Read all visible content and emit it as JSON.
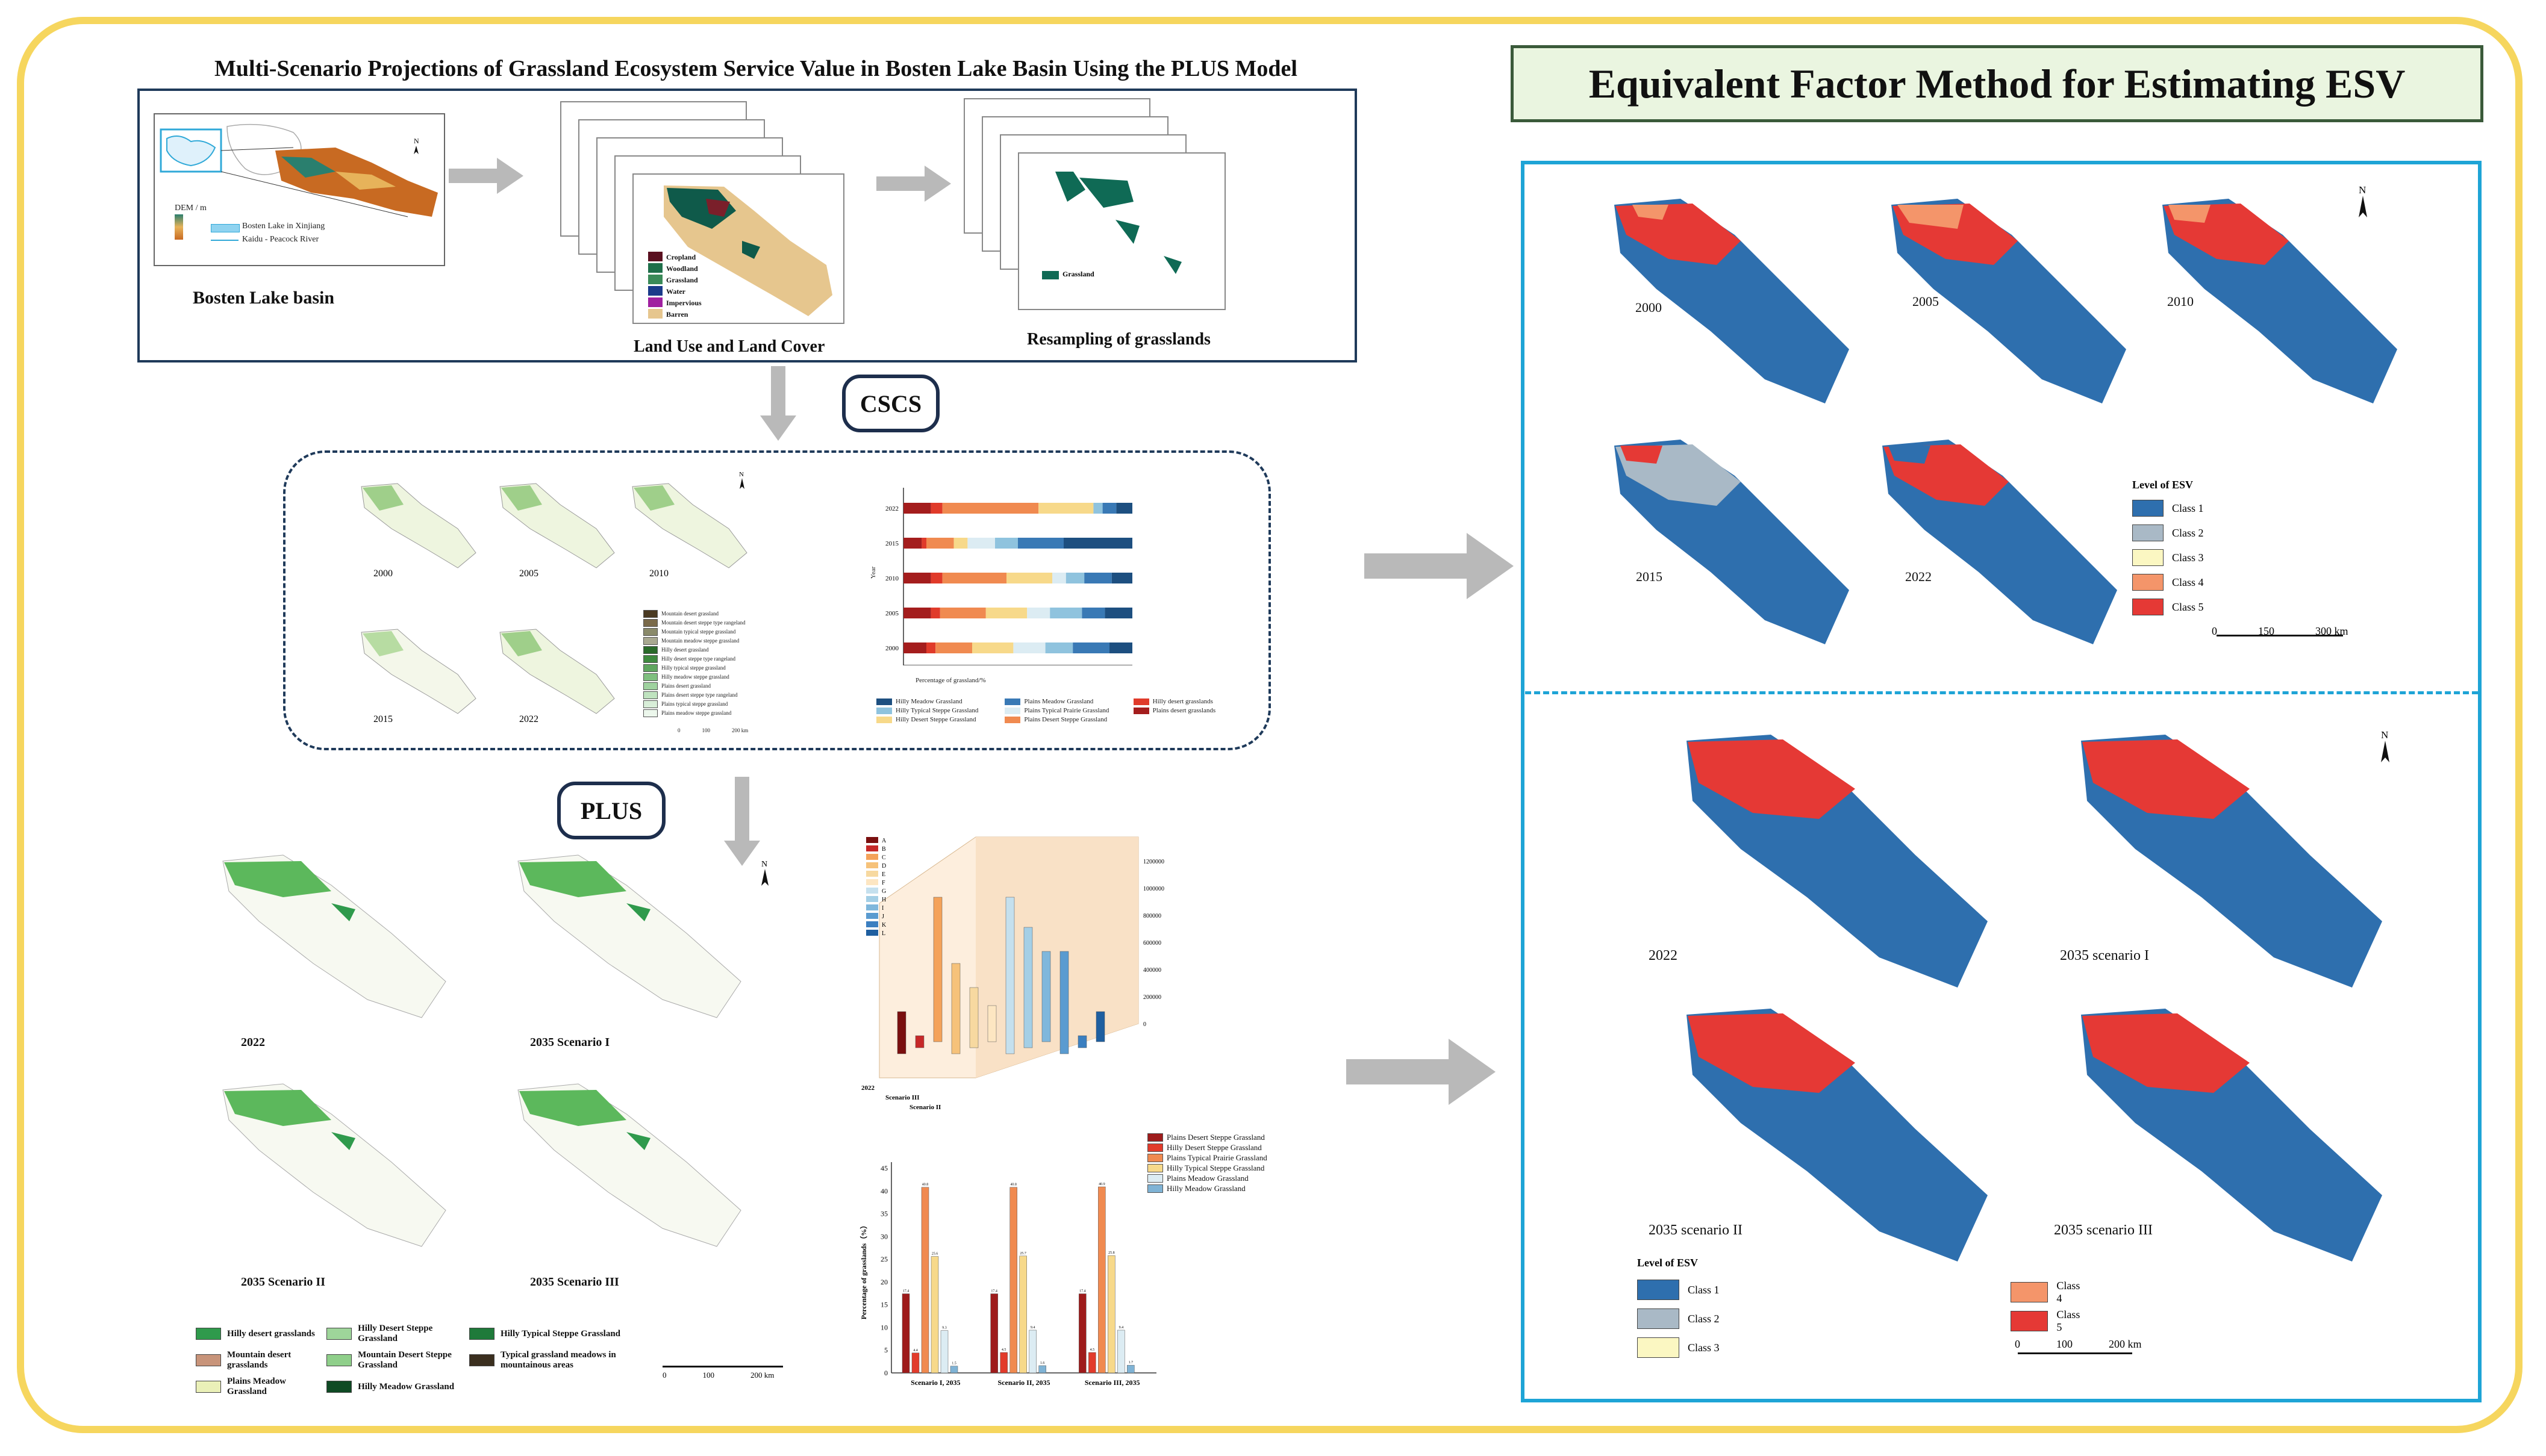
{
  "main_title": "Multi-Scenario Projections of Grassland Ecosystem Service Value in Bosten Lake Basin Using the PLUS Model",
  "right_title": "Equivalent Factor Method for Estimating ESV",
  "top_panel": {
    "basin_label": "Bosten Lake basin",
    "lulc_label": "Land Use and Land Cover",
    "resample_label": "Resampling of grasslands",
    "lulc_legend": [
      "Cropland",
      "Woodland",
      "Grassland",
      "Water",
      "Impervious",
      "Barren"
    ],
    "basin_legend": [
      "Bosten Lake in Xinjiang",
      "Kaidu - Peacock River"
    ],
    "dem_title": "DEM / m",
    "resample_legend": "Grassland"
  },
  "cscs_label": "CSCS",
  "plus_label": "PLUS",
  "cscs_years": [
    "2000",
    "2005",
    "2010",
    "2015",
    "2022"
  ],
  "cscs_legend": [
    "Mountain desert grassland",
    "Mountain desert steppe type rangeland",
    "Mountain typical steppe grassland",
    "Mountain meadow steppe grassland",
    "Hilly desert grassland",
    "Hilly desert steppe type rangeland",
    "Hilly typical steppe grassland",
    "Hilly meadow steppe grassland",
    "Plains desert grassland",
    "Plains desert steppe type rangeland",
    "Plains typical steppe grassland",
    "Plains meadow steppe grassland"
  ],
  "scale_cscs": [
    "0",
    "100",
    "200 km"
  ],
  "bar_chart": {
    "years": [
      "2022",
      "2015",
      "2010",
      "2005",
      "2000"
    ],
    "xlabel": "Percentage of grassland/%",
    "ylabel": "Year",
    "ticks": [
      "0",
      "20",
      "40",
      "60",
      "80",
      "100"
    ],
    "colors": [
      "#a41d1d",
      "#e03a2a",
      "#f08a50",
      "#f7d98a",
      "#dcecf3",
      "#8fc3de",
      "#3979b5",
      "#1d4f80"
    ],
    "rows": [
      [
        12,
        5,
        42,
        24,
        0,
        4,
        6,
        7
      ],
      [
        8,
        2,
        12,
        6,
        12,
        10,
        20,
        30
      ],
      [
        12,
        5,
        28,
        20,
        6,
        8,
        12,
        9
      ],
      [
        12,
        4,
        20,
        18,
        10,
        14,
        10,
        12
      ],
      [
        10,
        4,
        16,
        18,
        14,
        12,
        16,
        10
      ]
    ],
    "legend": [
      "Hilly Meadow Grassland",
      "Plains Meadow Grassland",
      "Hilly desert grasslands",
      "Hilly Typical Steppe Grassland",
      "Plains Typical Prairie Grassland",
      "Plains desert grasslands",
      "Hilly Desert Steppe Grassland",
      "Plains Desert Steppe Grassland"
    ]
  },
  "plus_maps": [
    "2022",
    "2035 Scenario I",
    "2035 Scenario II",
    "2035 Scenario III"
  ],
  "plus_legend": [
    "Hilly desert grasslands",
    "Hilly Desert Steppe Grassland",
    "Hilly Typical Steppe Grassland",
    "Mountain desert grasslands",
    "Mountain Desert Steppe Grassland",
    "Typical grassland meadows in mountainous areas",
    "Plains Meadow Grassland",
    "Hilly Meadow Grassland"
  ],
  "plus_legend_colors": [
    "#2f9a4c",
    "#9ed59a",
    "#1f7a3a",
    "#c8947a",
    "#8fcf8a",
    "#3b2f1f",
    "#eaf0b8",
    "#0f4a24"
  ],
  "scale_plus": [
    "0",
    "100",
    "200 km"
  ],
  "chart3d": {
    "categories": [
      "A",
      "B",
      "C",
      "D",
      "E",
      "F",
      "G",
      "H",
      "I",
      "J",
      "K",
      "L"
    ],
    "yticks": [
      "0",
      "200000",
      "400000",
      "600000",
      "800000",
      "1000000",
      "1200000"
    ],
    "scenarios": [
      "2022",
      "Scenario III",
      "Scenario II"
    ]
  },
  "chart_data": {
    "type": "bar",
    "categories": [
      "Scenario I, 2035",
      "Scenario II, 2035",
      "Scenario III, 2035"
    ],
    "ylabel": "Percentage of grasslands（%）",
    "ylim": [
      0,
      45
    ],
    "yticks": [
      "0",
      "5",
      "10",
      "15",
      "20",
      "25",
      "30",
      "35",
      "40",
      "45"
    ],
    "series": [
      {
        "name": "Plains Desert Steppe Grassland",
        "values": [
          17.4,
          17.4,
          17.4
        ],
        "color": "#9e1b1b"
      },
      {
        "name": "Hilly Desert Steppe Grassland",
        "values": [
          4.4,
          4.5,
          4.5
        ],
        "color": "#e23b2b"
      },
      {
        "name": "Plains Typical Prairie Grassland",
        "values": [
          40.8,
          40.8,
          40.9
        ],
        "color": "#f08a50"
      },
      {
        "name": "Hilly Typical Steppe Grassland",
        "values": [
          25.6,
          25.7,
          25.8
        ],
        "color": "#f7d98a"
      },
      {
        "name": "Plains Meadow Grassland",
        "values": [
          9.3,
          9.4,
          9.4
        ],
        "color": "#dcecf3"
      },
      {
        "name": "Hilly Meadow Grassland",
        "values": [
          1.5,
          1.6,
          1.7
        ],
        "color": "#7fb3d5"
      }
    ]
  },
  "esv_top": {
    "years": [
      "2000",
      "2005",
      "2010",
      "2015",
      "2022"
    ],
    "legend_title": "Level of ESV",
    "classes": [
      "Class 1",
      "Class 2",
      "Class 3",
      "Class 4",
      "Class 5"
    ],
    "colors": [
      "#2e6fae",
      "#a9b9c6",
      "#fbf7c2",
      "#f4956a",
      "#e53935"
    ],
    "scale": [
      "0",
      "150",
      "300 km"
    ]
  },
  "esv_bottom": {
    "maps": [
      "2022",
      "2035 scenario I",
      "2035 scenario II",
      "2035 scenario III"
    ],
    "legend_title": "Level of ESV",
    "classes": [
      "Class 1",
      "Class 2",
      "Class 3",
      "Class 4",
      "Class 5"
    ],
    "scale": [
      "0",
      "100",
      "200 km"
    ]
  }
}
